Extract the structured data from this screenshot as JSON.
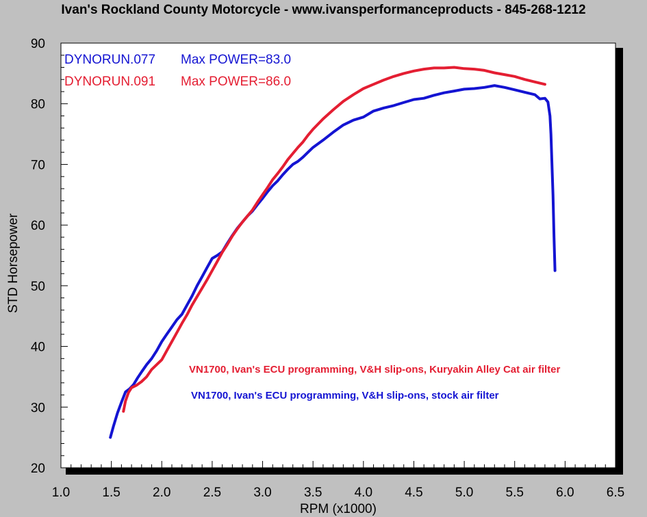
{
  "header": {
    "title": "Ivan's Rockland County Motorcycle - www.ivansperformanceproducts - 845-268-1212"
  },
  "chart_data": {
    "type": "line",
    "xlabel": "RPM (x1000)",
    "ylabel": "STD Horsepower",
    "xlim": [
      1.0,
      6.5
    ],
    "ylim": [
      20,
      90
    ],
    "x_ticks": [
      "1.0",
      "1.5",
      "2.0",
      "2.5",
      "3.0",
      "3.5",
      "4.0",
      "4.5",
      "5.0",
      "5.5",
      "6.0",
      "6.5"
    ],
    "y_ticks": [
      "20",
      "30",
      "40",
      "50",
      "60",
      "70",
      "80",
      "90"
    ],
    "grid": false,
    "legend": [
      {
        "run": "DYNORUN.077",
        "label": "Max POWER=83.0",
        "color": "#1414d2"
      },
      {
        "run": "DYNORUN.091",
        "label": "Max POWER=86.0",
        "color": "#e41e32"
      }
    ],
    "annotations": [
      {
        "text": "VN1700, Ivan's ECU programming, V&H slip-ons, Kuryakin Alley Cat air filter",
        "color": "#e41e32"
      },
      {
        "text": "VN1700, Ivan's ECU programming, V&H slip-ons, stock air filter",
        "color": "#1414d2"
      }
    ],
    "series": [
      {
        "name": "DYNORUN.077",
        "color": "#1414d2",
        "x": [
          1.49,
          1.52,
          1.56,
          1.6,
          1.64,
          1.68,
          1.72,
          1.76,
          1.8,
          1.85,
          1.9,
          1.95,
          2.0,
          2.05,
          2.1,
          2.15,
          2.2,
          2.25,
          2.3,
          2.35,
          2.4,
          2.45,
          2.5,
          2.55,
          2.6,
          2.65,
          2.7,
          2.75,
          2.8,
          2.85,
          2.9,
          2.95,
          3.0,
          3.05,
          3.1,
          3.15,
          3.2,
          3.25,
          3.3,
          3.35,
          3.4,
          3.45,
          3.5,
          3.6,
          3.7,
          3.8,
          3.9,
          4.0,
          4.1,
          4.2,
          4.3,
          4.4,
          4.5,
          4.6,
          4.7,
          4.8,
          4.9,
          5.0,
          5.1,
          5.2,
          5.3,
          5.4,
          5.5,
          5.6,
          5.7,
          5.75,
          5.8,
          5.83,
          5.85,
          5.86,
          5.87,
          5.88,
          5.89,
          5.9
        ],
        "values": [
          25.0,
          26.8,
          29.0,
          30.8,
          32.5,
          33.0,
          33.7,
          34.8,
          35.8,
          37.0,
          38.0,
          39.3,
          40.8,
          42.0,
          43.2,
          44.4,
          45.3,
          46.8,
          48.3,
          50.0,
          51.5,
          53.0,
          54.5,
          55.0,
          55.6,
          57.0,
          58.3,
          59.5,
          60.5,
          61.5,
          62.3,
          63.4,
          64.4,
          65.5,
          66.5,
          67.3,
          68.3,
          69.2,
          70.0,
          70.5,
          71.2,
          72.0,
          72.8,
          74.0,
          75.3,
          76.5,
          77.3,
          77.8,
          78.8,
          79.3,
          79.7,
          80.2,
          80.7,
          80.9,
          81.4,
          81.8,
          82.1,
          82.4,
          82.5,
          82.7,
          83.0,
          82.7,
          82.3,
          81.9,
          81.5,
          80.8,
          80.9,
          80.3,
          78.0,
          75.0,
          70.0,
          65.0,
          58.0,
          52.5
        ]
      },
      {
        "name": "DYNORUN.091",
        "color": "#e41e32",
        "x": [
          1.62,
          1.64,
          1.67,
          1.7,
          1.75,
          1.8,
          1.85,
          1.9,
          1.95,
          2.0,
          2.05,
          2.1,
          2.15,
          2.2,
          2.25,
          2.3,
          2.35,
          2.4,
          2.45,
          2.5,
          2.55,
          2.6,
          2.65,
          2.7,
          2.75,
          2.8,
          2.85,
          2.9,
          2.95,
          3.0,
          3.05,
          3.1,
          3.15,
          3.2,
          3.25,
          3.3,
          3.35,
          3.4,
          3.45,
          3.5,
          3.6,
          3.7,
          3.8,
          3.9,
          4.0,
          4.1,
          4.2,
          4.3,
          4.4,
          4.5,
          4.6,
          4.7,
          4.8,
          4.9,
          5.0,
          5.1,
          5.2,
          5.3,
          5.4,
          5.5,
          5.6,
          5.7,
          5.75,
          5.8
        ],
        "values": [
          29.3,
          31.0,
          32.4,
          33.2,
          33.6,
          34.2,
          35.0,
          36.2,
          37.0,
          37.8,
          39.3,
          40.8,
          42.3,
          43.8,
          45.2,
          46.8,
          48.2,
          49.6,
          51.0,
          52.5,
          54.0,
          55.5,
          56.8,
          58.2,
          59.4,
          60.5,
          61.5,
          62.5,
          63.8,
          65.0,
          66.2,
          67.5,
          68.5,
          69.6,
          70.8,
          71.8,
          72.8,
          73.7,
          74.8,
          75.8,
          77.5,
          79.0,
          80.4,
          81.5,
          82.5,
          83.2,
          83.9,
          84.5,
          85.0,
          85.4,
          85.7,
          85.9,
          85.9,
          86.0,
          85.8,
          85.7,
          85.5,
          85.1,
          84.8,
          84.5,
          84.0,
          83.6,
          83.4,
          83.2
        ]
      }
    ]
  }
}
